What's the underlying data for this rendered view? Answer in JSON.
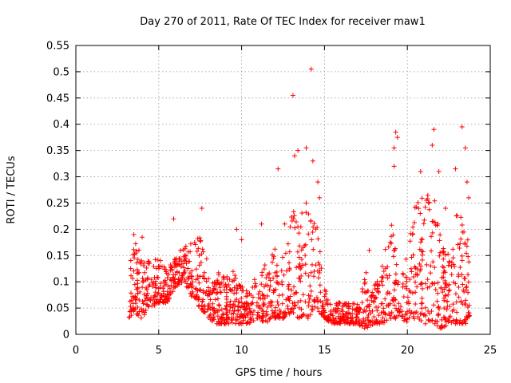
{
  "chart_data": {
    "type": "scatter",
    "title": "Day 270 of 2011, Rate Of TEC Index for receiver maw1",
    "xlabel": "GPS time / hours",
    "ylabel": "ROTI / TECUs",
    "xlim": [
      0,
      25
    ],
    "ylim": [
      0,
      0.55
    ],
    "xticks": [
      0,
      5,
      10,
      15,
      20,
      25
    ],
    "xtick_labels": [
      "0",
      "5",
      "10",
      "15",
      "20",
      "25"
    ],
    "yticks": [
      0,
      0.05,
      0.1,
      0.15,
      0.2,
      0.25,
      0.3,
      0.35,
      0.4,
      0.45,
      0.5,
      0.55
    ],
    "ytick_labels": [
      "0",
      "0.05",
      "0.1",
      "0.15",
      "0.2",
      "0.25",
      "0.3",
      "0.35",
      "0.4",
      "0.45",
      "0.5",
      "0.55"
    ],
    "grid": true,
    "marker": "+",
    "color": "#ff0000",
    "x_start": 3.2,
    "x_end": 23.8,
    "envelope": {
      "hours": [
        3.2,
        3.5,
        4.0,
        4.5,
        5.0,
        5.5,
        6.0,
        6.5,
        7.0,
        7.5,
        8.0,
        8.5,
        9.0,
        9.5,
        10.0,
        10.5,
        11.0,
        11.5,
        12.0,
        12.5,
        13.0,
        13.5,
        14.0,
        14.5,
        15.0,
        15.5,
        16.0,
        16.5,
        17.0,
        17.5,
        18.0,
        18.5,
        19.0,
        19.5,
        20.0,
        20.5,
        21.0,
        21.5,
        22.0,
        22.5,
        23.0,
        23.5,
        23.8
      ],
      "low": [
        0.03,
        0.04,
        0.03,
        0.05,
        0.06,
        0.06,
        0.09,
        0.1,
        0.07,
        0.05,
        0.03,
        0.02,
        0.02,
        0.02,
        0.02,
        0.02,
        0.03,
        0.02,
        0.03,
        0.03,
        0.04,
        0.03,
        0.03,
        0.05,
        0.03,
        0.02,
        0.02,
        0.02,
        0.02,
        0.01,
        0.02,
        0.02,
        0.03,
        0.03,
        0.02,
        0.03,
        0.02,
        0.02,
        0.01,
        0.02,
        0.02,
        0.02,
        0.03
      ],
      "high": [
        0.12,
        0.18,
        0.15,
        0.14,
        0.15,
        0.12,
        0.15,
        0.17,
        0.18,
        0.19,
        0.14,
        0.12,
        0.11,
        0.12,
        0.1,
        0.09,
        0.12,
        0.14,
        0.17,
        0.16,
        0.24,
        0.22,
        0.26,
        0.22,
        0.09,
        0.07,
        0.06,
        0.06,
        0.06,
        0.12,
        0.09,
        0.15,
        0.23,
        0.13,
        0.16,
        0.25,
        0.28,
        0.3,
        0.19,
        0.15,
        0.26,
        0.2,
        0.17
      ]
    },
    "outliers": [
      {
        "x": 3.5,
        "y": 0.19
      },
      {
        "x": 4.0,
        "y": 0.185
      },
      {
        "x": 5.9,
        "y": 0.22
      },
      {
        "x": 7.6,
        "y": 0.24
      },
      {
        "x": 9.7,
        "y": 0.2
      },
      {
        "x": 10.0,
        "y": 0.18
      },
      {
        "x": 11.2,
        "y": 0.21
      },
      {
        "x": 12.2,
        "y": 0.315
      },
      {
        "x": 12.6,
        "y": 0.21
      },
      {
        "x": 13.1,
        "y": 0.455
      },
      {
        "x": 13.2,
        "y": 0.34
      },
      {
        "x": 13.4,
        "y": 0.35
      },
      {
        "x": 13.9,
        "y": 0.355
      },
      {
        "x": 14.2,
        "y": 0.505
      },
      {
        "x": 14.3,
        "y": 0.33
      },
      {
        "x": 14.6,
        "y": 0.29
      },
      {
        "x": 14.7,
        "y": 0.26
      },
      {
        "x": 17.7,
        "y": 0.16
      },
      {
        "x": 19.2,
        "y": 0.355
      },
      {
        "x": 19.3,
        "y": 0.385
      },
      {
        "x": 19.4,
        "y": 0.375
      },
      {
        "x": 19.2,
        "y": 0.32
      },
      {
        "x": 20.8,
        "y": 0.31
      },
      {
        "x": 21.5,
        "y": 0.36
      },
      {
        "x": 21.6,
        "y": 0.39
      },
      {
        "x": 21.9,
        "y": 0.31
      },
      {
        "x": 22.3,
        "y": 0.24
      },
      {
        "x": 22.9,
        "y": 0.315
      },
      {
        "x": 23.3,
        "y": 0.395
      },
      {
        "x": 23.5,
        "y": 0.355
      },
      {
        "x": 23.6,
        "y": 0.29
      },
      {
        "x": 23.7,
        "y": 0.26
      }
    ]
  }
}
